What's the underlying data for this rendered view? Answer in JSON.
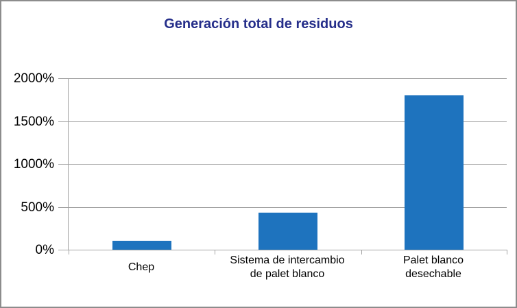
{
  "chart_data": {
    "type": "bar",
    "title": "Generación total de residuos",
    "categories": [
      "Chep",
      "Sistema de intercambio\nde palet blanco",
      "Palet blanco\ndesechable"
    ],
    "values": [
      100,
      430,
      1800
    ],
    "unit": "%",
    "xlabel": "",
    "ylabel": "",
    "y_ticks": [
      "0%",
      "500%",
      "1000%",
      "1500%",
      "2000%"
    ],
    "ylim": [
      0,
      2000
    ],
    "grid": true,
    "legend": false,
    "bar_color": "#1e73be",
    "title_color": "#252e8a",
    "axis_color": "#a3a3a3",
    "label_color": "#000000",
    "border_color": "#8c8c8c",
    "background_color": "#ffffff"
  }
}
